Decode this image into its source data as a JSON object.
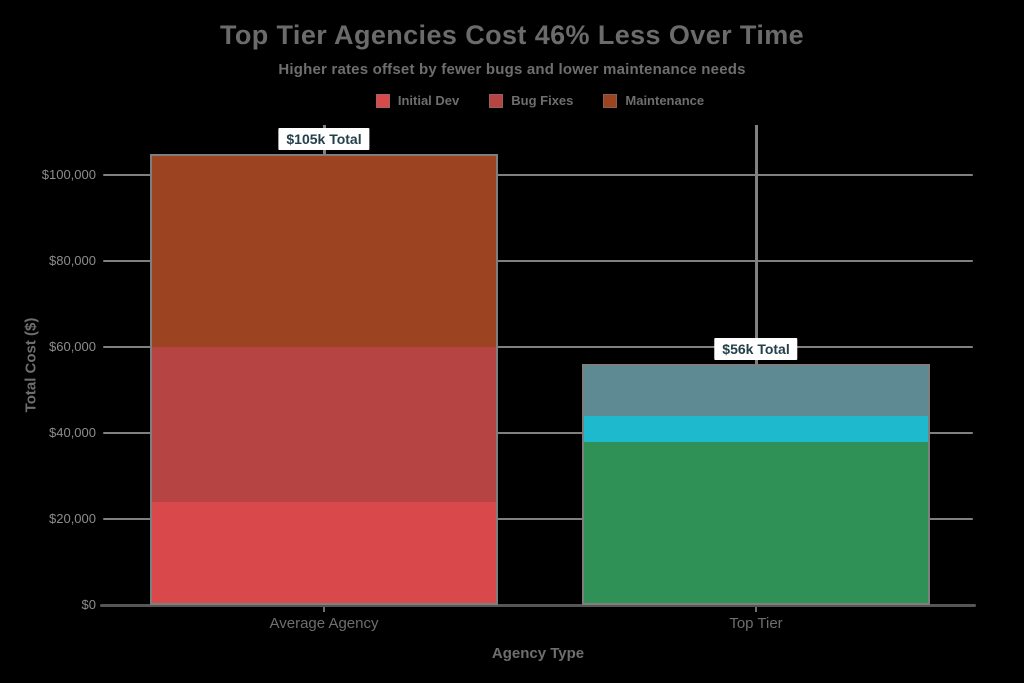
{
  "page": {
    "background": "#000000"
  },
  "chart_data": {
    "type": "bar",
    "stacked": true,
    "title": "Top Tier Agencies Cost 46% Less Over Time",
    "subtitle": "Higher rates offset by fewer bugs and lower maintenance needs",
    "xlabel": "Agency Type",
    "ylabel": "Total Cost ($)",
    "ylim": [
      0,
      110000
    ],
    "grid": true,
    "legend_position": "top",
    "legend": [
      {
        "label": "Initial Dev",
        "color": "#d9494b"
      },
      {
        "label": "Bug Fixes",
        "color": "#b54442"
      },
      {
        "label": "Maintenance",
        "color": "#9c4322"
      }
    ],
    "yticks": [
      {
        "value": 0,
        "label": "$0"
      },
      {
        "value": 20000,
        "label": "$20,000"
      },
      {
        "value": 40000,
        "label": "$40,000"
      },
      {
        "value": 60000,
        "label": "$60,000"
      },
      {
        "value": 80000,
        "label": "$80,000"
      },
      {
        "value": 100000,
        "label": "$100,000"
      }
    ],
    "categories": [
      "Average Agency",
      "Top Tier"
    ],
    "bars": [
      {
        "category": "Average Agency",
        "total": 105000,
        "total_label": "$105k Total",
        "segments": [
          {
            "name": "Initial Dev",
            "value": 24000,
            "color": "#d9494b"
          },
          {
            "name": "Bug Fixes",
            "value": 36000,
            "color": "#b54442"
          },
          {
            "name": "Maintenance",
            "value": 45000,
            "color": "#9c4322"
          }
        ]
      },
      {
        "category": "Top Tier",
        "total": 56000,
        "total_label": "$56k Total",
        "segments": [
          {
            "name": "Initial Dev",
            "value": 38000,
            "color": "#2f9156"
          },
          {
            "name": "Bug Fixes",
            "value": 6000,
            "color": "#1fb9ce"
          },
          {
            "name": "Maintenance",
            "value": 12000,
            "color": "#5e8a93"
          }
        ]
      }
    ]
  },
  "style": {
    "grid_color": "#808080",
    "axis_color": "#565656",
    "tick_label_color": "#8c8c8c",
    "text_color": "#6e6e6e",
    "bar_border_color": "#7f7f7f",
    "annotation_bg": "#ffffff",
    "annotation_text": "#24404a"
  }
}
